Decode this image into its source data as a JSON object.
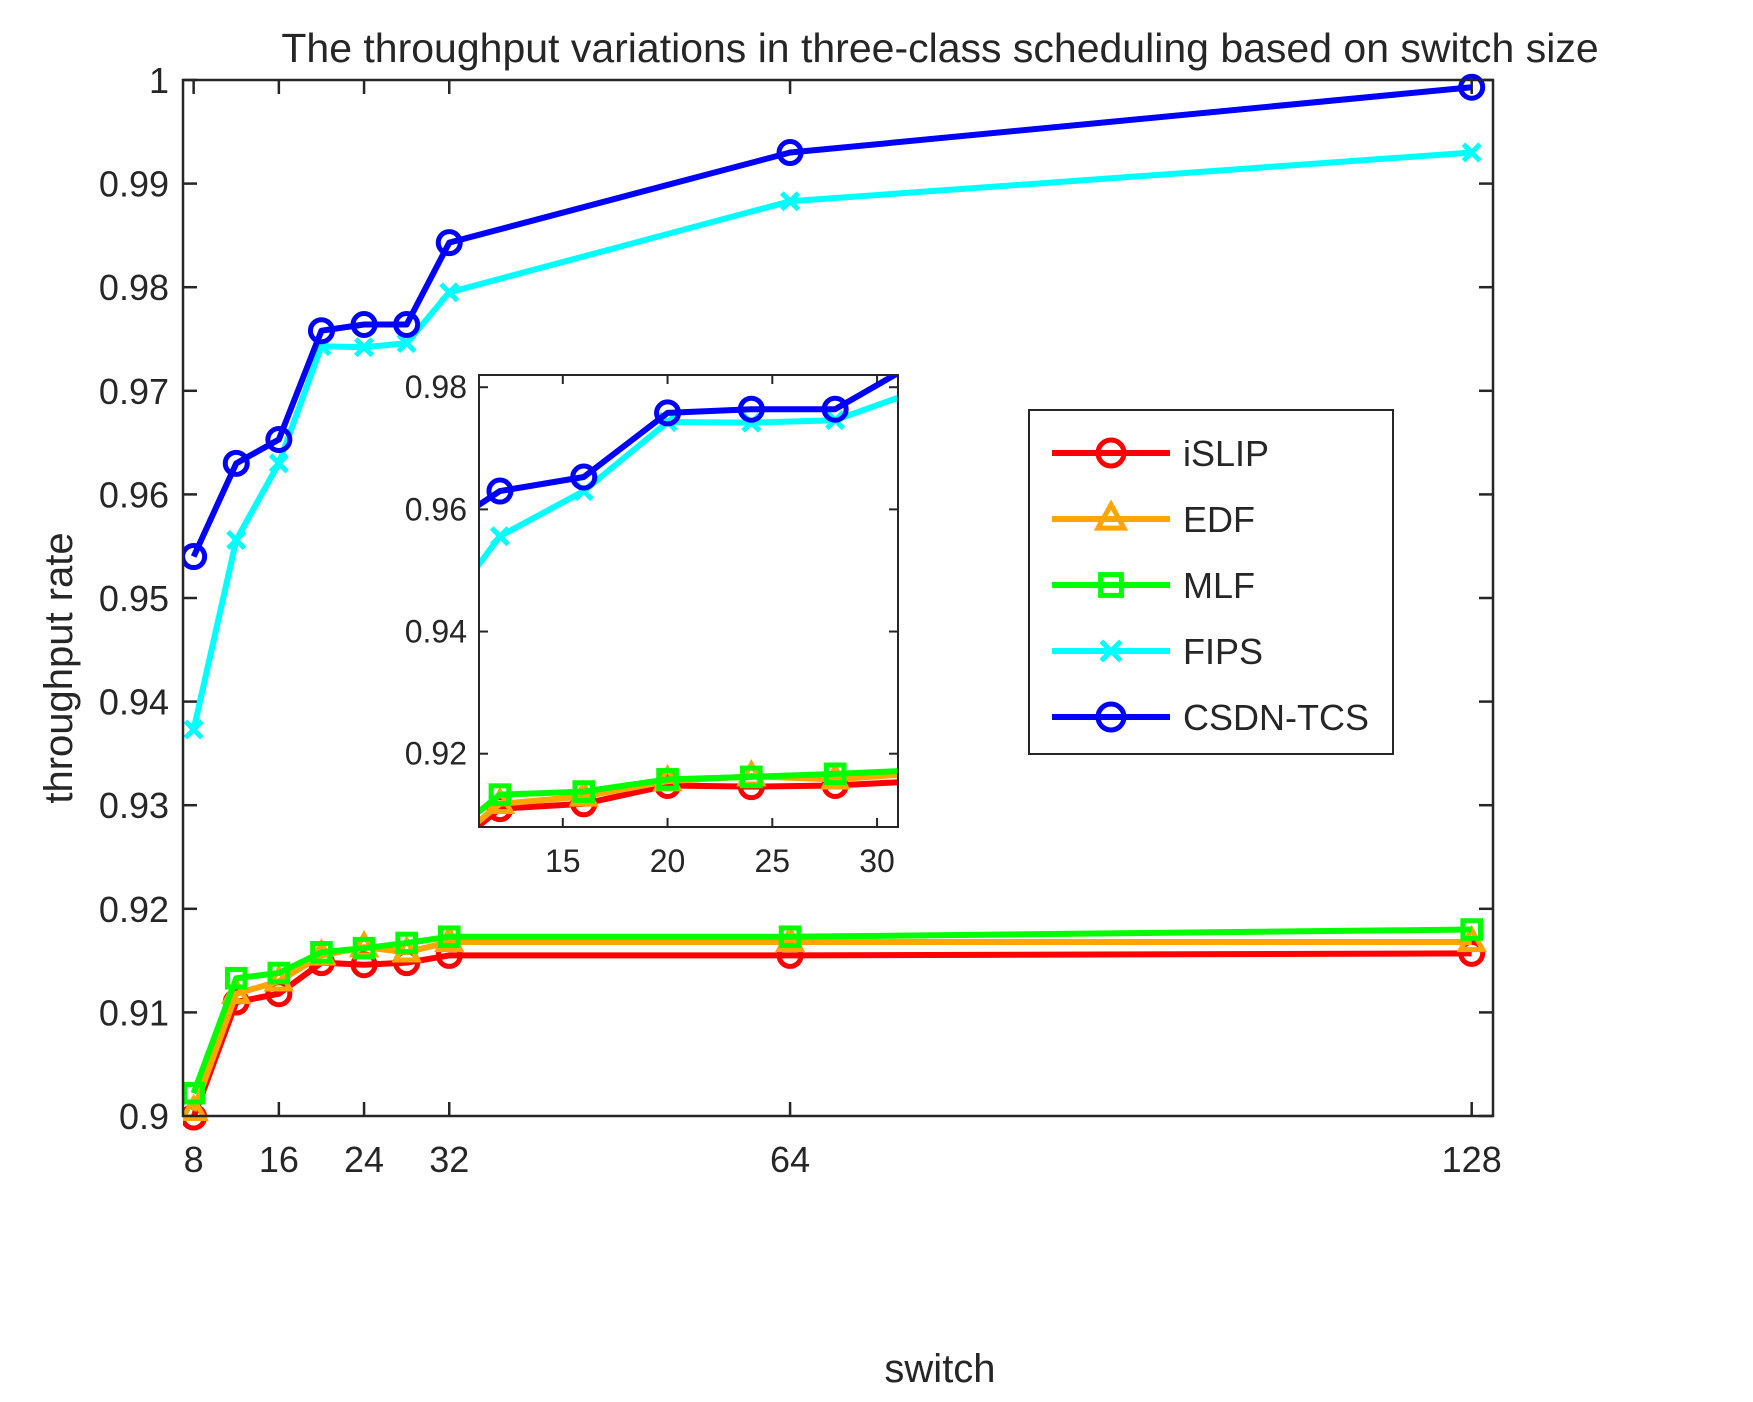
{
  "chart_data": {
    "type": "line",
    "title": "The throughput variations in three-class scheduling based on switch size",
    "xlabel": "switch",
    "ylabel": "throughput rate",
    "xlim": [
      7,
      130
    ],
    "ylim": [
      0.9,
      1.0
    ],
    "xticks": [
      8,
      16,
      24,
      32,
      64,
      128
    ],
    "xtick_labels": [
      "8",
      "16",
      "24",
      "32",
      "64",
      "128"
    ],
    "yticks": [
      0.9,
      0.91,
      0.92,
      0.93,
      0.94,
      0.95,
      0.96,
      0.97,
      0.98,
      0.99,
      1.0
    ],
    "ytick_labels": [
      "0.9",
      "0.91",
      "0.92",
      "0.93",
      "0.94",
      "0.95",
      "0.96",
      "0.97",
      "0.98",
      "0.99",
      "1"
    ],
    "x": [
      8,
      12,
      16,
      20,
      24,
      28,
      32,
      64,
      128
    ],
    "legend_position": "right",
    "series": [
      {
        "name": "iSLIP",
        "color": "#ff0000",
        "marker": "circle",
        "values": [
          0.8999,
          0.911,
          0.9118,
          0.9148,
          0.9146,
          0.9148,
          0.9155,
          0.9155,
          0.9157
        ]
      },
      {
        "name": "EDF",
        "color": "#ffa500",
        "marker": "triangle",
        "values": [
          0.9005,
          0.9118,
          0.913,
          0.9155,
          0.9163,
          0.9158,
          0.9168,
          0.9168,
          0.9168
        ]
      },
      {
        "name": "MLF",
        "color": "#00ff00",
        "marker": "square",
        "values": [
          0.9022,
          0.9133,
          0.9138,
          0.9158,
          0.9162,
          0.9167,
          0.9173,
          0.9173,
          0.918
        ]
      },
      {
        "name": "FIPS",
        "color": "#00ffff",
        "marker": "x",
        "values": [
          0.9373,
          0.9556,
          0.963,
          0.9743,
          0.9742,
          0.9746,
          0.9795,
          0.9883,
          0.993
        ]
      },
      {
        "name": "CSDN-TCS",
        "color": "#0000ff",
        "marker": "circle",
        "values": [
          0.954,
          0.963,
          0.9653,
          0.9758,
          0.9764,
          0.9764,
          0.9843,
          0.993,
          0.9993
        ]
      }
    ],
    "inset": {
      "xlim": [
        11,
        31
      ],
      "ylim": [
        0.908,
        0.982
      ],
      "xticks": [
        15,
        20,
        25,
        30
      ],
      "xtick_labels": [
        "15",
        "20",
        "25",
        "30"
      ],
      "yticks": [
        0.92,
        0.94,
        0.96,
        0.98
      ],
      "ytick_labels": [
        "0.92",
        "0.94",
        "0.96",
        "0.98"
      ]
    }
  }
}
